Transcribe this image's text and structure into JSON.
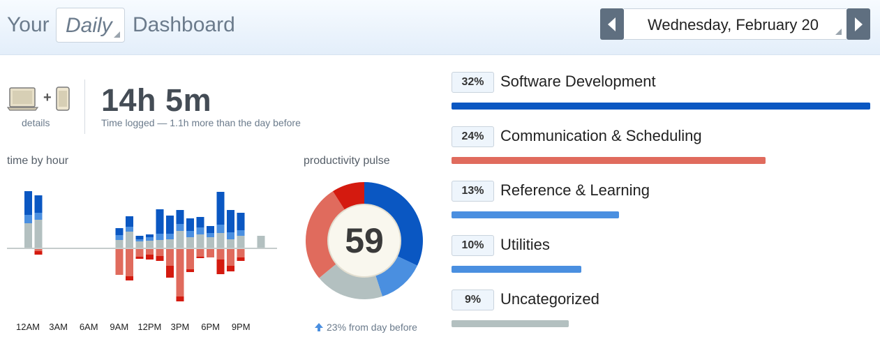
{
  "header": {
    "title_prefix": "Your",
    "period": "Daily",
    "title_suffix": "Dashboard",
    "date": "Wednesday, February 20"
  },
  "summary": {
    "details_label": "details",
    "plus": "+",
    "total_time": "14h 5m",
    "subtitle": "Time logged — 1.1h more than the day before"
  },
  "colors": {
    "very_productive": "#0a57c2",
    "productive": "#4a8fe0",
    "neutral": "#b3c0c0",
    "distracting": "#e06b5d",
    "very_distracting": "#d41a0f"
  },
  "time_by_hour": {
    "label": "time by hour",
    "x_tick_labels": [
      "12AM",
      "3AM",
      "6AM",
      "9AM",
      "12PM",
      "3PM",
      "6PM",
      "9PM"
    ],
    "chart_data": {
      "type": "bar",
      "stacked": true,
      "diverging": true,
      "categories": [
        "0",
        "1",
        "2",
        "3",
        "4",
        "5",
        "6",
        "7",
        "8",
        "9",
        "10",
        "11",
        "12",
        "13",
        "14",
        "15",
        "16",
        "17",
        "18",
        "19",
        "20",
        "21",
        "22",
        "23"
      ],
      "series": [
        {
          "key": "very_productive",
          "values": [
            34,
            25,
            0,
            0,
            0,
            0,
            0,
            0,
            0,
            10,
            15,
            5,
            4,
            35,
            26,
            20,
            18,
            15,
            10,
            47,
            32,
            25,
            0,
            0
          ]
        },
        {
          "key": "productive",
          "values": [
            12,
            10,
            0,
            0,
            0,
            0,
            0,
            0,
            0,
            7,
            7,
            3,
            5,
            9,
            8,
            10,
            9,
            10,
            6,
            12,
            10,
            8,
            0,
            0
          ]
        },
        {
          "key": "neutral",
          "values": [
            35,
            40,
            0,
            0,
            0,
            0,
            0,
            0,
            0,
            11,
            23,
            9,
            10,
            11,
            12,
            24,
            15,
            19,
            15,
            21,
            12,
            17,
            0,
            17
          ]
        },
        {
          "key": "distracting",
          "values": [
            0,
            -3,
            0,
            0,
            0,
            0,
            0,
            0,
            0,
            -37,
            -39,
            -11,
            -8,
            -10,
            -24,
            -68,
            -29,
            -11,
            -12,
            -15,
            -24,
            -12,
            0,
            0
          ]
        },
        {
          "key": "very_distracting",
          "values": [
            0,
            -5,
            0,
            0,
            0,
            0,
            0,
            0,
            0,
            0,
            -6,
            -3,
            -7,
            -7,
            -17,
            -7,
            -4,
            -2,
            0,
            -21,
            -8,
            -5,
            0,
            0
          ]
        }
      ]
    }
  },
  "pulse": {
    "label": "productivity pulse",
    "score": "59",
    "change": "23% from day before",
    "chart_data": {
      "type": "pie",
      "donut": true,
      "slices": [
        {
          "key": "very_productive",
          "value": 32
        },
        {
          "key": "productive",
          "value": 13
        },
        {
          "key": "neutral",
          "value": 19
        },
        {
          "key": "distracting",
          "value": 27
        },
        {
          "key": "very_distracting",
          "value": 9
        }
      ]
    }
  },
  "categories": [
    {
      "percent": "32%",
      "name": "Software Development",
      "share": 1.0,
      "color": "#0a57c2"
    },
    {
      "percent": "24%",
      "name": "Communication & Scheduling",
      "share": 0.75,
      "color": "#e06b5d"
    },
    {
      "percent": "13%",
      "name": "Reference & Learning",
      "share": 0.4,
      "color": "#4a8fe0"
    },
    {
      "percent": "10%",
      "name": "Utilities",
      "share": 0.31,
      "color": "#4a8fe0"
    },
    {
      "percent": "9%",
      "name": "Uncategorized",
      "share": 0.28,
      "color": "#b3c0c0"
    }
  ]
}
